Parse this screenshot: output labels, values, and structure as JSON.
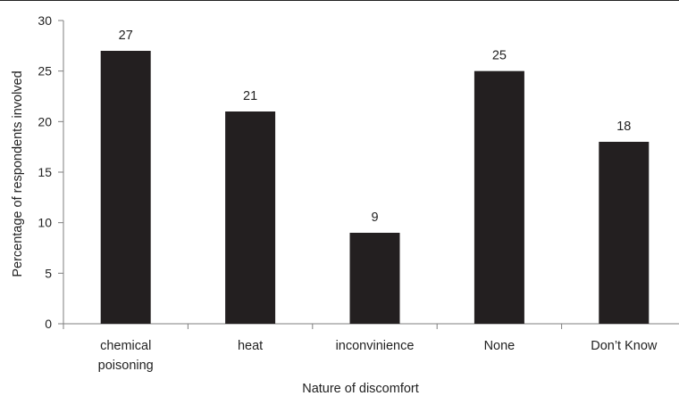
{
  "chart_data": {
    "type": "bar",
    "title": "",
    "xlabel": "Nature of discomfort",
    "ylabel": "Percentage of respondents involved",
    "categories": [
      [
        "chemical",
        "poisoning"
      ],
      [
        "heat"
      ],
      [
        "inconvinience"
      ],
      [
        "None"
      ],
      [
        "Don’t Know"
      ]
    ],
    "values": [
      27,
      21,
      9,
      25,
      18
    ],
    "data_labels": [
      "27",
      "21",
      "9",
      "25",
      "18"
    ],
    "ylim": [
      0,
      30
    ],
    "yticks": [
      0,
      5,
      10,
      15,
      20,
      25,
      30
    ],
    "grid": false,
    "legend": "none",
    "bar_color": "#231f20",
    "axis_color": "#7f7f7f"
  }
}
